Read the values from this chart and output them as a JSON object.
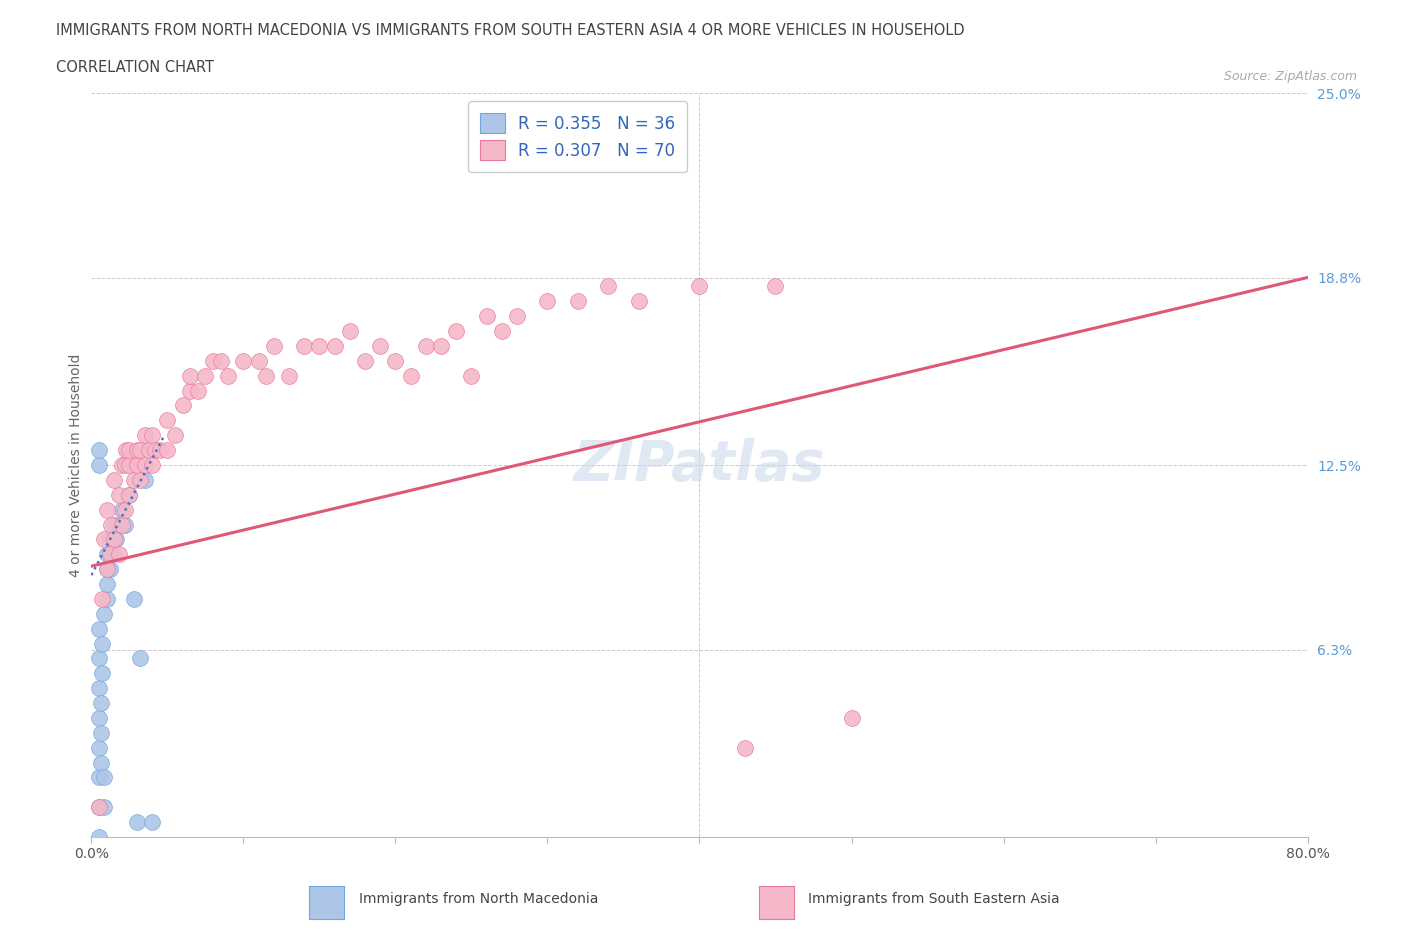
{
  "title_line1": "IMMIGRANTS FROM NORTH MACEDONIA VS IMMIGRANTS FROM SOUTH EASTERN ASIA 4 OR MORE VEHICLES IN HOUSEHOLD",
  "title_line2": "CORRELATION CHART",
  "source": "Source: ZipAtlas.com",
  "ylabel": "4 or more Vehicles in Household",
  "xlim": [
    0.0,
    0.8
  ],
  "ylim": [
    0.0,
    0.25
  ],
  "yticks_right": [
    0.0,
    0.063,
    0.125,
    0.188,
    0.25
  ],
  "yticklabels_right": [
    "",
    "6.3%",
    "12.5%",
    "18.8%",
    "25.0%"
  ],
  "legend_r1": "R = 0.355",
  "legend_n1": "N = 36",
  "legend_r2": "R = 0.307",
  "legend_n2": "N = 70",
  "legend_label1": "Immigrants from North Macedonia",
  "legend_label2": "Immigrants from South Eastern Asia",
  "blue_color": "#adc6e8",
  "blue_edge_color": "#6fa8dc",
  "blue_line_color": "#4472c4",
  "pink_color": "#f4b8c8",
  "pink_edge_color": "#e878a0",
  "pink_line_color": "#e05878",
  "watermark": "ZIPatlas",
  "pink_trend_x0": 0.0,
  "pink_trend_y0": 0.091,
  "pink_trend_x1": 0.8,
  "pink_trend_y1": 0.188,
  "blue_trend_x0": 0.0,
  "blue_trend_y0": 0.088,
  "blue_trend_x1": 0.048,
  "blue_trend_y1": 0.135,
  "blue_scatter_x": [
    0.005,
    0.005,
    0.005,
    0.005,
    0.005,
    0.005,
    0.005,
    0.005,
    0.006,
    0.006,
    0.006,
    0.007,
    0.007,
    0.008,
    0.008,
    0.008,
    0.01,
    0.01,
    0.01,
    0.01,
    0.012,
    0.012,
    0.014,
    0.015,
    0.016,
    0.018,
    0.02,
    0.022,
    0.025,
    0.028,
    0.03,
    0.032,
    0.005,
    0.005,
    0.035,
    0.04
  ],
  "blue_scatter_y": [
    0.0,
    0.01,
    0.02,
    0.03,
    0.04,
    0.05,
    0.06,
    0.07,
    0.025,
    0.035,
    0.045,
    0.055,
    0.065,
    0.01,
    0.02,
    0.075,
    0.08,
    0.085,
    0.09,
    0.095,
    0.09,
    0.1,
    0.095,
    0.105,
    0.1,
    0.105,
    0.11,
    0.105,
    0.115,
    0.08,
    0.005,
    0.06,
    0.125,
    0.13,
    0.12,
    0.005
  ],
  "pink_scatter_x": [
    0.005,
    0.007,
    0.008,
    0.01,
    0.01,
    0.012,
    0.013,
    0.015,
    0.015,
    0.018,
    0.018,
    0.02,
    0.02,
    0.022,
    0.022,
    0.023,
    0.025,
    0.025,
    0.025,
    0.028,
    0.03,
    0.03,
    0.032,
    0.032,
    0.035,
    0.035,
    0.038,
    0.04,
    0.04,
    0.042,
    0.045,
    0.05,
    0.05,
    0.055,
    0.06,
    0.065,
    0.065,
    0.07,
    0.075,
    0.08,
    0.085,
    0.09,
    0.1,
    0.11,
    0.115,
    0.12,
    0.13,
    0.14,
    0.15,
    0.16,
    0.17,
    0.18,
    0.19,
    0.2,
    0.21,
    0.22,
    0.23,
    0.24,
    0.25,
    0.26,
    0.27,
    0.28,
    0.3,
    0.32,
    0.34,
    0.36,
    0.4,
    0.43,
    0.45,
    0.5
  ],
  "pink_scatter_y": [
    0.01,
    0.08,
    0.1,
    0.09,
    0.11,
    0.095,
    0.105,
    0.1,
    0.12,
    0.095,
    0.115,
    0.105,
    0.125,
    0.11,
    0.125,
    0.13,
    0.115,
    0.125,
    0.13,
    0.12,
    0.125,
    0.13,
    0.12,
    0.13,
    0.125,
    0.135,
    0.13,
    0.125,
    0.135,
    0.13,
    0.13,
    0.13,
    0.14,
    0.135,
    0.145,
    0.15,
    0.155,
    0.15,
    0.155,
    0.16,
    0.16,
    0.155,
    0.16,
    0.16,
    0.155,
    0.165,
    0.155,
    0.165,
    0.165,
    0.165,
    0.17,
    0.16,
    0.165,
    0.16,
    0.155,
    0.165,
    0.165,
    0.17,
    0.155,
    0.175,
    0.17,
    0.175,
    0.18,
    0.18,
    0.185,
    0.18,
    0.185,
    0.03,
    0.185,
    0.04
  ]
}
